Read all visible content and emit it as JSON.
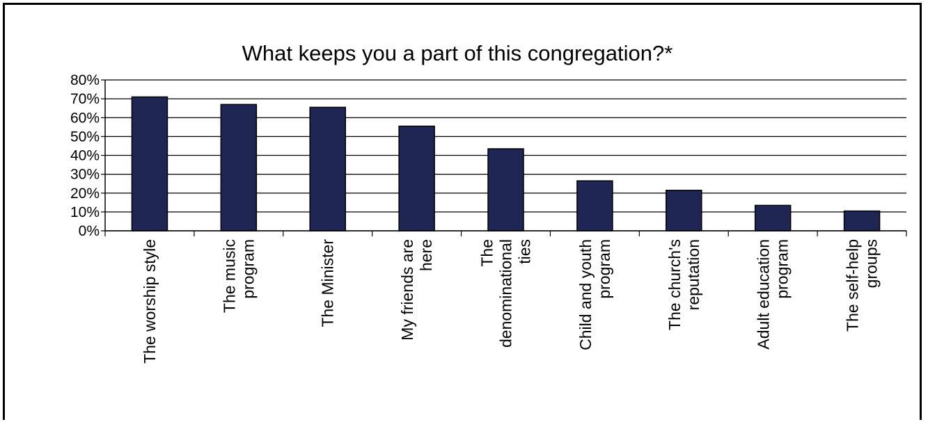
{
  "chart_data": {
    "type": "bar",
    "title": "What keeps you a part of this congregation?*",
    "xlabel": "",
    "ylabel": "",
    "ylim": [
      0,
      80
    ],
    "yticks": [
      "0%",
      "10%",
      "20%",
      "30%",
      "40%",
      "50%",
      "60%",
      "70%",
      "80%"
    ],
    "ytick_values": [
      0,
      10,
      20,
      30,
      40,
      50,
      60,
      70,
      80
    ],
    "grid": true,
    "legend": "none",
    "categories": [
      "The worship style",
      "The music program",
      "The Minister",
      "My friends are here",
      "The denominational ties",
      "Child and youth program",
      "The church's reputation",
      "Adult education program",
      "The self-help groups"
    ],
    "category_lines": [
      [
        "The worship style"
      ],
      [
        "The music",
        "program"
      ],
      [
        "The Minister"
      ],
      [
        "My friends are",
        "here"
      ],
      [
        "The",
        "denominational",
        "ties"
      ],
      [
        "Child and youth",
        "program"
      ],
      [
        "The church's",
        "reputation"
      ],
      [
        "Adult education",
        "program"
      ],
      [
        "The self-help",
        "groups"
      ]
    ],
    "values": [
      71,
      67,
      65.5,
      55.5,
      43.5,
      26.5,
      21.5,
      13.5,
      10.5
    ],
    "bar_color": "#1f2654"
  }
}
